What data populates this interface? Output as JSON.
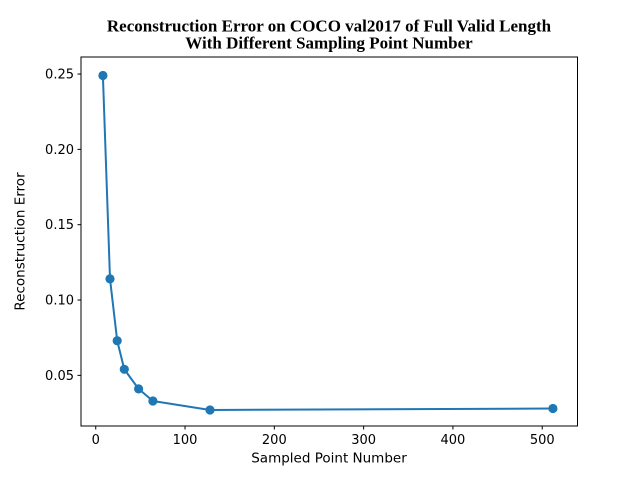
{
  "chart_data": {
    "type": "line",
    "title": "Reconstruction Error on COCO val2017 of Full Valid Length\nWith Different Sampling Point Number",
    "title_lines": [
      "Reconstruction Error on COCO val2017 of Full Valid Length",
      "With Different Sampling Point Number"
    ],
    "xlabel": "Sampled Point Number",
    "ylabel": "Reconstruction Error",
    "x": [
      8,
      16,
      24,
      32,
      48,
      64,
      128,
      512
    ],
    "y": [
      0.249,
      0.114,
      0.073,
      0.054,
      0.041,
      0.033,
      0.027,
      0.028
    ],
    "xticks": [
      0,
      100,
      200,
      300,
      400,
      500
    ],
    "yticks": [
      0.05,
      0.1,
      0.15,
      0.2,
      0.25
    ],
    "ytick_labels": [
      "0.05",
      "0.10",
      "0.15",
      "0.20",
      "0.25"
    ],
    "xlim": [
      -16.5,
      539.5
    ],
    "ylim": [
      0.0164,
      0.2613
    ],
    "grid": false,
    "legend": "none",
    "line_color": "#1f77b4",
    "marker": "circle",
    "background_color": "#ffffff",
    "spine_color": "#000000"
  }
}
